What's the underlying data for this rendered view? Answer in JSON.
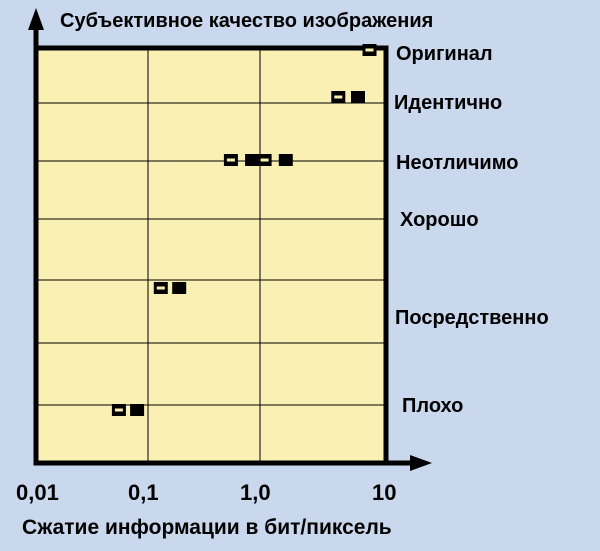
{
  "chart_data": {
    "type": "scatter",
    "ylabel": "Субъективное качество изображения",
    "xlabel": "Сжатие информации в бит/пиксель",
    "x_scale": "log",
    "xlim": [
      0.01,
      10
    ],
    "x_ticks": [
      "0,01",
      "0,1",
      "1,0",
      "10"
    ],
    "y_categories": [
      "Оригинал",
      "Идентично",
      "Неотличимо",
      "Хорошо",
      "Посредственно",
      "Плохо"
    ],
    "grid": true,
    "colors": {
      "plot_bg": "#fbf0b4",
      "page_bg": "#c9d8ec",
      "marker": "#000000"
    },
    "series": [
      {
        "marker": "hollow-square",
        "points": [
          {
            "x": 9.5,
            "y": "Оригинал"
          },
          {
            "x": 5.0,
            "y": "Идентично"
          },
          {
            "x": 1.1,
            "y": "Неотличимо"
          },
          {
            "x": 0.55,
            "y": "Неотличимо"
          },
          {
            "x": 0.13,
            "y": "Посредственно"
          },
          {
            "x": 0.055,
            "y": "Плохо"
          }
        ]
      },
      {
        "marker": "filled-square",
        "points": [
          {
            "x": 7.5,
            "y": "Идентично"
          },
          {
            "x": 1.7,
            "y": "Неотличимо"
          },
          {
            "x": 0.85,
            "y": "Неотличимо"
          },
          {
            "x": 0.19,
            "y": "Посредственно"
          },
          {
            "x": 0.08,
            "y": "Плохо"
          }
        ]
      }
    ]
  }
}
